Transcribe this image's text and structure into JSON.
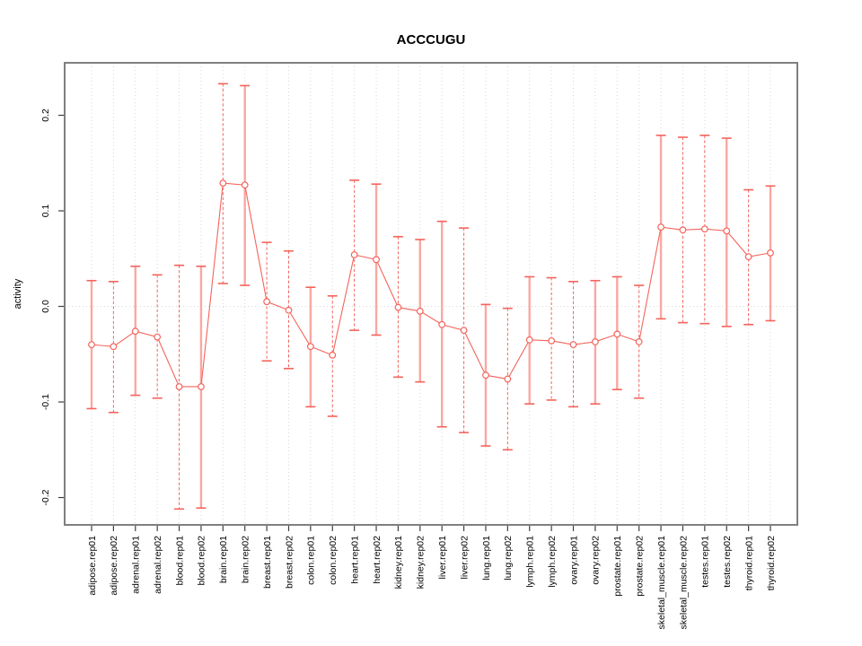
{
  "chart_data": {
    "type": "scatter",
    "subtype": "points-with-error-bars",
    "title": "ACCCUGU",
    "xlabel": "",
    "ylabel": "activity",
    "legend": "none",
    "grid": "dotted vertical line at each category; dotted horizontal line at y=0",
    "point_style": "open-circle",
    "line_style": "solid segments connecting consecutive points",
    "ylim": [
      -0.2286,
      0.2549
    ],
    "yticks": [
      -0.2,
      -0.1,
      0.0,
      0.1,
      0.2
    ],
    "ytick_labels": [
      "-0.2",
      "-0.1",
      "0.0",
      "0.1",
      "0.2"
    ],
    "categories": [
      "adipose.rep01",
      "adipose.rep02",
      "adrenal.rep01",
      "adrenal.rep02",
      "blood.rep01",
      "blood.rep02",
      "brain.rep01",
      "brain.rep02",
      "breast.rep01",
      "breast.rep02",
      "colon.rep01",
      "colon.rep02",
      "heart.rep01",
      "heart.rep02",
      "kidney.rep01",
      "kidney.rep02",
      "liver.rep01",
      "liver.rep02",
      "lung.rep01",
      "lung.rep02",
      "lymph.rep01",
      "lymph.rep02",
      "ovary.rep01",
      "ovary.rep02",
      "prostate.rep01",
      "prostate.rep02",
      "skeletal_muscle.rep01",
      "skeletal_muscle.rep02",
      "testes.rep01",
      "testes.rep02",
      "thyroid.rep01",
      "thyroid.rep02"
    ],
    "series": [
      {
        "name": "activity",
        "values": [
          -0.04,
          -0.042,
          -0.026,
          -0.032,
          -0.084,
          -0.084,
          0.129,
          0.127,
          0.005,
          -0.004,
          -0.042,
          -0.051,
          0.054,
          0.049,
          -0.001,
          -0.005,
          -0.019,
          -0.025,
          -0.072,
          -0.076,
          -0.035,
          -0.036,
          -0.04,
          -0.037,
          -0.029,
          -0.037,
          0.083,
          0.08,
          0.081,
          0.079,
          0.052,
          0.056
        ],
        "error_high": [
          0.027,
          0.026,
          0.042,
          0.033,
          0.043,
          0.042,
          0.233,
          0.231,
          0.067,
          0.058,
          0.02,
          0.011,
          0.132,
          0.128,
          0.073,
          0.07,
          0.089,
          0.082,
          0.002,
          -0.002,
          0.031,
          0.03,
          0.026,
          0.027,
          0.031,
          0.022,
          0.179,
          0.177,
          0.179,
          0.176,
          0.122,
          0.126
        ],
        "error_low": [
          -0.107,
          -0.111,
          -0.093,
          -0.096,
          -0.212,
          -0.211,
          0.024,
          0.022,
          -0.057,
          -0.065,
          -0.105,
          -0.115,
          -0.025,
          -0.03,
          -0.074,
          -0.079,
          -0.126,
          -0.132,
          -0.146,
          -0.15,
          -0.102,
          -0.098,
          -0.105,
          -0.102,
          -0.087,
          -0.096,
          -0.013,
          -0.017,
          -0.018,
          -0.021,
          -0.019,
          -0.015
        ],
        "error_bar_styles": [
          "solid",
          "dashed",
          "solid",
          "dashed",
          "dashed",
          "solid",
          "dashed",
          "solid",
          "dashed",
          "dashed",
          "solid",
          "dashed",
          "dashed",
          "solid",
          "dashed",
          "solid",
          "solid",
          "dashed",
          "solid",
          "dashed",
          "solid",
          "dashed",
          "dashed",
          "solid",
          "solid",
          "dashed",
          "solid",
          "dashed",
          "dashed",
          "solid",
          "dashed",
          "solid"
        ]
      }
    ],
    "colors": {
      "series": "#f4635b",
      "series_light": "#f9a8a2",
      "grid": "#d8d8d8",
      "frame": "#7f7f7f",
      "tick": "#404040",
      "text": "#000000",
      "background": "#ffffff"
    }
  }
}
